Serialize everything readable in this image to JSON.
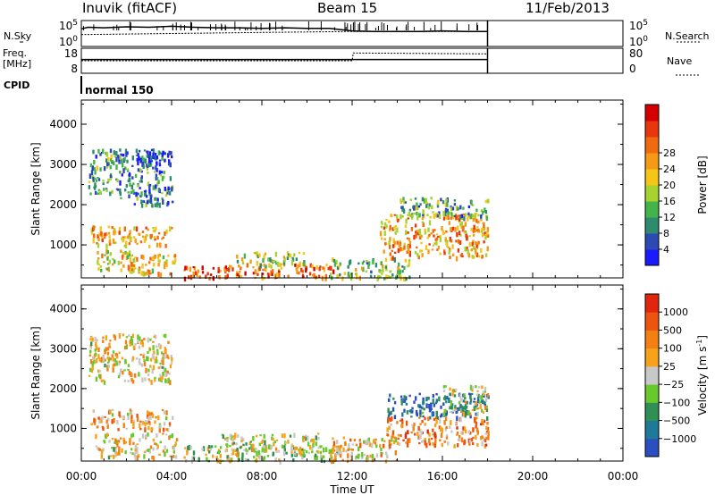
{
  "header": {
    "radar": "Inuvik (fitACF)",
    "beam": "Beam 15",
    "date": "11/Feb/2013"
  },
  "side_labels": {
    "nsky": "N.Sky",
    "freq": "Freq.",
    "mhz": "[MHz]",
    "cpid": "CPID",
    "nsearch": "N.Search",
    "nave": "Nave"
  },
  "cpid_name": "normal 150",
  "colors": {
    "power_scale": [
      "#1a1aff",
      "#2d49b3",
      "#2e8b6e",
      "#43b44a",
      "#a6d32f",
      "#f5c518",
      "#f59a16",
      "#f06a10",
      "#e8360d",
      "#d40000"
    ],
    "velocity_scale": [
      "#2b4fc0",
      "#1f7a9a",
      "#2f8f55",
      "#67c92c",
      "#c8c8c8",
      "#f7a21b",
      "#f47f12",
      "#ec5410",
      "#e0270e"
    ]
  },
  "chart_data": [
    {
      "type": "line",
      "name": "sky-noise",
      "x_range": [
        0,
        24
      ],
      "y_labels": [
        "10^5",
        "10^0"
      ],
      "y_labels_right": [
        "10^5",
        "10^0"
      ],
      "series": [
        {
          "name": "N.Sky",
          "x": [
            0.0,
            0.3,
            1.0,
            2.0,
            3.0,
            4.0,
            5.0,
            6.0,
            7.0,
            8.0,
            9.0,
            10.0,
            11.0,
            12.0,
            13.0,
            14.0,
            15.0,
            16.0,
            17.0,
            18.0
          ],
          "y": [
            3.4,
            3.7,
            3.6,
            3.8,
            3.7,
            3.9,
            3.7,
            3.6,
            3.6,
            3.5,
            3.6,
            3.5,
            3.5,
            3.0,
            2.9,
            2.9,
            2.9,
            3.0,
            2.9,
            2.9
          ]
        },
        {
          "name": "N.Search",
          "x": [
            0.0,
            2.0,
            4.0,
            6.0,
            8.0,
            10.0,
            12.0,
            14.0,
            16.0,
            18.0
          ],
          "y": [
            2.3,
            2.4,
            2.5,
            2.6,
            2.7,
            2.8,
            2.9,
            2.9,
            2.9,
            2.9
          ]
        }
      ]
    },
    {
      "type": "line",
      "name": "freq-nave",
      "x_range": [
        0,
        24
      ],
      "y_labels": [
        "18",
        "8"
      ],
      "y_labels_right": [
        "80",
        "0"
      ],
      "series": [
        {
          "name": "Freq",
          "x": [
            0.0,
            18.0
          ],
          "y": [
            11,
            11
          ]
        },
        {
          "name": "Nave",
          "x": [
            0.0,
            12.0,
            12.05,
            18.0
          ],
          "y": [
            40,
            40,
            65,
            62
          ]
        }
      ]
    },
    {
      "type": "heatmap",
      "name": "power",
      "xlabel": "",
      "ylabel": "Slant Range [km]",
      "x_range": [
        0,
        24
      ],
      "y_range": [
        180,
        4600
      ],
      "yticks": [
        1000,
        2000,
        3000,
        4000
      ],
      "colorbar_label": "Power [dB]",
      "colorbar_ticks": [
        "4",
        "8",
        "12",
        "16",
        "20",
        "24",
        "28"
      ],
      "regions": [
        {
          "t0": 0.4,
          "t1": 4.0,
          "r0": 1000,
          "r1": 1500,
          "level": 0.62
        },
        {
          "t0": 0.6,
          "t1": 2.5,
          "r0": 400,
          "r1": 900,
          "level": 0.55
        },
        {
          "t0": 2.0,
          "t1": 4.2,
          "r0": 300,
          "r1": 800,
          "level": 0.6
        },
        {
          "t0": 4.5,
          "t1": 6.5,
          "r0": 200,
          "r1": 500,
          "level": 0.85
        },
        {
          "t0": 6.3,
          "t1": 11.5,
          "r0": 200,
          "r1": 550,
          "level": 0.75
        },
        {
          "t0": 6.8,
          "t1": 10.0,
          "r0": 500,
          "r1": 850,
          "level": 0.45
        },
        {
          "t0": 11.0,
          "t1": 14.5,
          "r0": 200,
          "r1": 700,
          "level": 0.4
        },
        {
          "t0": 13.2,
          "t1": 18.0,
          "r0": 700,
          "r1": 1800,
          "level": 0.65
        },
        {
          "t0": 14.0,
          "t1": 18.0,
          "r0": 1700,
          "r1": 2200,
          "level": 0.3
        },
        {
          "t0": 0.3,
          "t1": 1.5,
          "r0": 2300,
          "r1": 3400,
          "level": 0.3
        },
        {
          "t0": 1.5,
          "t1": 4.0,
          "r0": 2000,
          "r1": 3400,
          "level": 0.25
        },
        {
          "t0": 2.4,
          "t1": 4.0,
          "r0": 3000,
          "r1": 3400,
          "level": 0.05
        }
      ]
    },
    {
      "type": "heatmap",
      "name": "velocity",
      "xlabel": "Time UT",
      "ylabel": "Slant Range [km]",
      "x_range": [
        0,
        24
      ],
      "y_range": [
        180,
        4600
      ],
      "xticks": [
        "00:00",
        "04:00",
        "08:00",
        "12:00",
        "16:00",
        "20:00",
        "00:00"
      ],
      "yticks": [
        1000,
        2000,
        3000,
        4000
      ],
      "colorbar_label": "Velocity [m s^-1]",
      "colorbar_ticks": [
        "1000",
        "500",
        "100",
        "25",
        "−25",
        "−100",
        "−500",
        "−1000"
      ],
      "regions": [
        {
          "t0": 0.4,
          "t1": 4.0,
          "r0": 1000,
          "r1": 1500,
          "level": 0.65
        },
        {
          "t0": 0.6,
          "t1": 4.2,
          "r0": 300,
          "r1": 900,
          "level": 0.55
        },
        {
          "t0": 4.5,
          "t1": 11.5,
          "r0": 200,
          "r1": 600,
          "level": 0.45
        },
        {
          "t0": 6.0,
          "t1": 10.5,
          "r0": 400,
          "r1": 900,
          "level": 0.5
        },
        {
          "t0": 11.0,
          "t1": 14.0,
          "r0": 200,
          "r1": 800,
          "level": 0.6
        },
        {
          "t0": 13.5,
          "t1": 18.0,
          "r0": 1300,
          "r1": 1900,
          "level": 0.12
        },
        {
          "t0": 13.5,
          "t1": 18.0,
          "r0": 600,
          "r1": 1300,
          "level": 0.7
        },
        {
          "t0": 16.0,
          "t1": 18.0,
          "r0": 1400,
          "r1": 2100,
          "level": 0.5
        },
        {
          "t0": 0.3,
          "t1": 4.0,
          "r0": 2200,
          "r1": 3400,
          "level": 0.55
        }
      ]
    }
  ]
}
